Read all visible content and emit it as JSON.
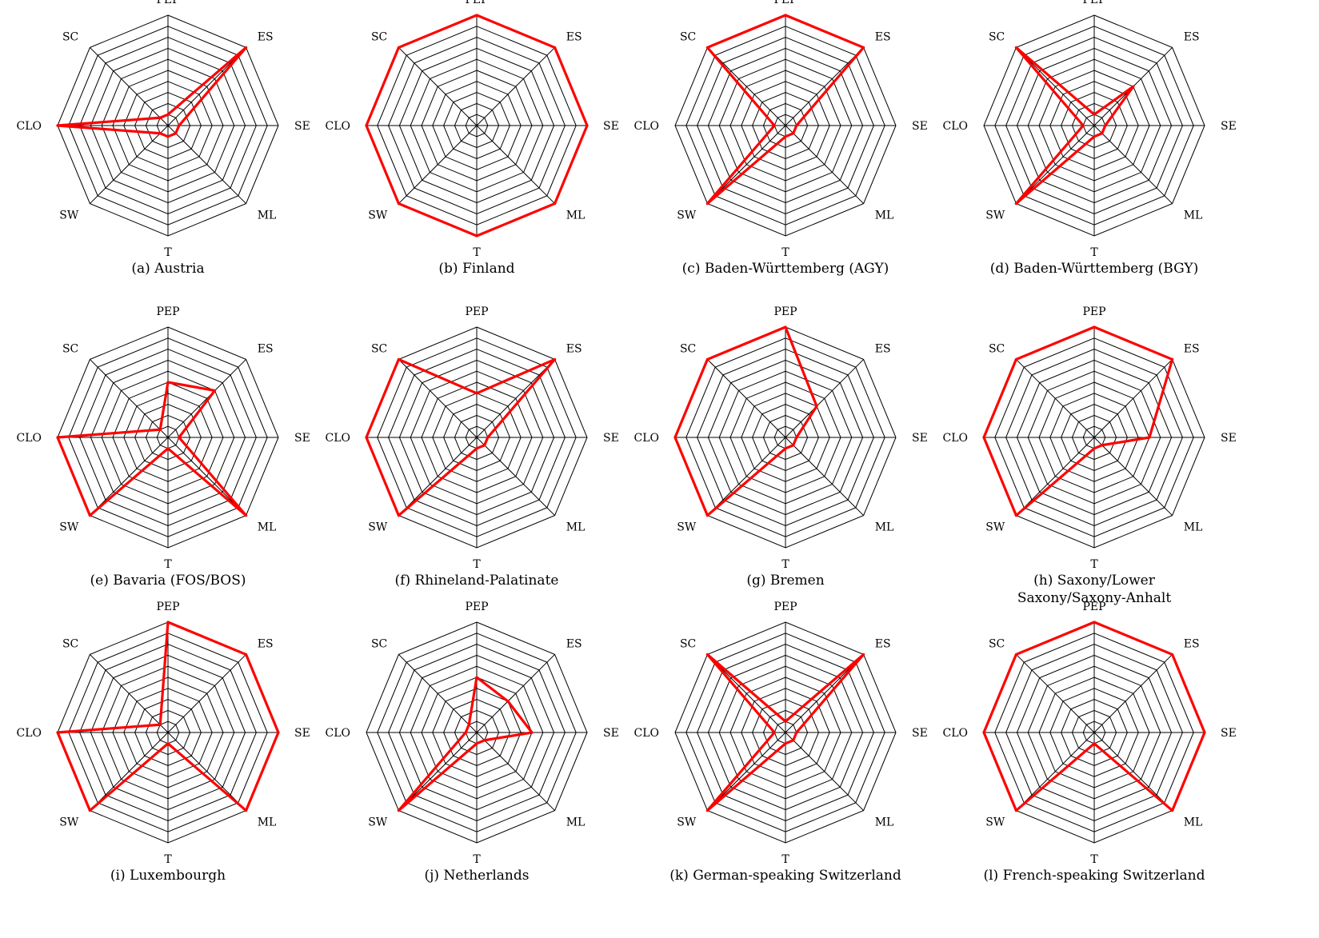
{
  "axes": [
    "PEP",
    "ES",
    "SE",
    "ML",
    "T",
    "SW",
    "CLO",
    "SC"
  ],
  "axis_label_text": [
    "PEP",
    "ES",
    "SE",
    "ML",
    "T",
    "SW",
    "CLO",
    "SC"
  ],
  "colors": {
    "grid": "#000000",
    "series": "#ff0000",
    "background": "#ffffff"
  },
  "chart_data": [
    {
      "type": "radar",
      "caption": [
        "(a) Austria"
      ],
      "rmax": 10,
      "grid_levels": 10,
      "values": [
        1,
        10,
        1,
        1,
        1,
        1,
        10,
        1
      ]
    },
    {
      "type": "radar",
      "caption": [
        "(b) Finland"
      ],
      "rmax": 10,
      "grid_levels": 10,
      "values": [
        10,
        10,
        10,
        10,
        10,
        10,
        10,
        10
      ]
    },
    {
      "type": "radar",
      "caption": [
        "(c) Baden-Württemberg (AGY)"
      ],
      "rmax": 10,
      "grid_levels": 10,
      "values": [
        10,
        10,
        1,
        1,
        1,
        10,
        1,
        10
      ]
    },
    {
      "type": "radar",
      "caption": [
        "(d) Baden-Württemberg (BGY)"
      ],
      "rmax": 10,
      "grid_levels": 10,
      "values": [
        1,
        5,
        1,
        1,
        1,
        10,
        1,
        10
      ]
    },
    {
      "type": "radar",
      "caption": [
        "(e) Bavaria (FOS/BOS)"
      ],
      "rmax": 10,
      "grid_levels": 10,
      "values": [
        5,
        6,
        1,
        10,
        1,
        10,
        10,
        1
      ]
    },
    {
      "type": "radar",
      "caption": [
        "(f) Rhineland-Palatinate"
      ],
      "rmax": 10,
      "grid_levels": 10,
      "values": [
        4,
        10,
        1,
        1,
        1,
        10,
        10,
        10
      ]
    },
    {
      "type": "radar",
      "caption": [
        "(g) Bremen"
      ],
      "rmax": 10,
      "grid_levels": 10,
      "values": [
        10,
        4,
        1,
        1,
        1,
        10,
        10,
        10
      ]
    },
    {
      "type": "radar",
      "caption": [
        "(h) Saxony/Lower",
        "Saxony/Saxony-Anhalt"
      ],
      "rmax": 10,
      "grid_levels": 10,
      "values": [
        10,
        10,
        5,
        1,
        1,
        10,
        10,
        10
      ]
    },
    {
      "type": "radar",
      "caption": [
        "(i) Luxembourgh"
      ],
      "rmax": 10,
      "grid_levels": 10,
      "values": [
        10,
        10,
        10,
        10,
        1,
        10,
        10,
        1
      ]
    },
    {
      "type": "radar",
      "caption": [
        "(j) Netherlands"
      ],
      "rmax": 10,
      "grid_levels": 10,
      "values": [
        5,
        4,
        5,
        1,
        1,
        10,
        1,
        1
      ]
    },
    {
      "type": "radar",
      "caption": [
        "(k) German-speaking Switzerland"
      ],
      "rmax": 10,
      "grid_levels": 10,
      "values": [
        1,
        10,
        1,
        1,
        1,
        10,
        1,
        10
      ]
    },
    {
      "type": "radar",
      "caption": [
        "(l) French-speaking Switzerland"
      ],
      "rmax": 10,
      "grid_levels": 10,
      "values": [
        10,
        10,
        10,
        10,
        1,
        10,
        10,
        10
      ]
    }
  ]
}
